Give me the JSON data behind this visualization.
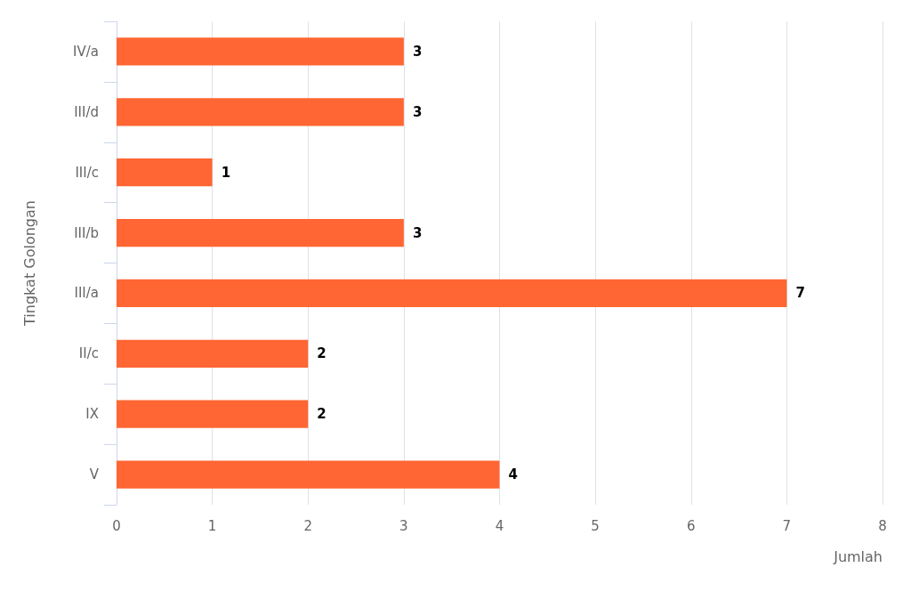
{
  "chart_data": {
    "type": "bar",
    "orientation": "horizontal",
    "xlabel": "Jumlah",
    "ylabel": "Tingkat Golongan",
    "categories": [
      "IV/a",
      "III/d",
      "III/c",
      "III/b",
      "III/a",
      "II/c",
      "IX",
      "V"
    ],
    "values": [
      3,
      3,
      1,
      3,
      7,
      2,
      2,
      4
    ],
    "color": "#ff6633",
    "xlim": [
      0,
      8
    ],
    "xticks": [
      0,
      1,
      2,
      3,
      4,
      5,
      6,
      7,
      8
    ],
    "grid": "x",
    "data_labels": true
  }
}
